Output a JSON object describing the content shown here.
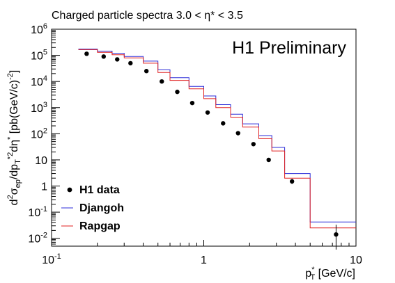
{
  "chart_data": {
    "type": "scatter",
    "title": "Charged particle spectra 3.0 < η* < 3.5",
    "annotation": "H1 Preliminary",
    "x_scale": "log",
    "y_scale": "log",
    "xlim": [
      0.1,
      10
    ],
    "ylim": [
      0.005,
      1000000
    ],
    "grid": false,
    "legend_position": "bottom-left",
    "x_ticks": [
      {
        "value": 0.1,
        "base": "10",
        "exp": "-1"
      },
      {
        "value": 1,
        "base": "1",
        "exp": ""
      },
      {
        "value": 10,
        "base": "10",
        "exp": ""
      }
    ],
    "y_ticks": [
      {
        "value": 0.01,
        "base": "10",
        "exp": "-2"
      },
      {
        "value": 0.1,
        "base": "10",
        "exp": "-1"
      },
      {
        "value": 1,
        "base": "1",
        "exp": ""
      },
      {
        "value": 10,
        "base": "10",
        "exp": ""
      },
      {
        "value": 100,
        "base": "10",
        "exp": "2"
      },
      {
        "value": 1000,
        "base": "10",
        "exp": "3"
      },
      {
        "value": 10000,
        "base": "10",
        "exp": "4"
      },
      {
        "value": 100000,
        "base": "10",
        "exp": "5"
      },
      {
        "value": 1000000,
        "base": "10",
        "exp": "6"
      }
    ],
    "xlabel": {
      "base": "p",
      "sup": "*",
      "sub": "T",
      "rest": " [GeV/c]"
    },
    "ylabel": {
      "parts": [
        {
          "t": "d",
          "s": ""
        },
        {
          "t": "2",
          "s": "sup"
        },
        {
          "t": "σ",
          "s": ""
        },
        {
          "t": "ep",
          "s": "sub"
        },
        {
          "t": "/dp",
          "s": ""
        },
        {
          "t": "T",
          "s": "sub"
        },
        {
          "t": "*2",
          "s": "sup"
        },
        {
          "t": "dη",
          "s": ""
        },
        {
          "t": "*",
          "s": "sup"
        },
        {
          "t": " [pb(GeV/c)",
          "s": ""
        },
        {
          "t": "-2",
          "s": "sup"
        },
        {
          "t": "]",
          "s": ""
        }
      ]
    },
    "series": [
      {
        "name": "H1 data",
        "kind": "points",
        "color": "#000000",
        "points": [
          {
            "x": 0.17,
            "y": 115000
          },
          {
            "x": 0.22,
            "y": 90000
          },
          {
            "x": 0.27,
            "y": 70000
          },
          {
            "x": 0.33,
            "y": 50000
          },
          {
            "x": 0.42,
            "y": 25000
          },
          {
            "x": 0.53,
            "y": 10000
          },
          {
            "x": 0.67,
            "y": 4000
          },
          {
            "x": 0.84,
            "y": 1500
          },
          {
            "x": 1.06,
            "y": 650
          },
          {
            "x": 1.34,
            "y": 250
          },
          {
            "x": 1.68,
            "y": 105
          },
          {
            "x": 2.12,
            "y": 40
          },
          {
            "x": 2.67,
            "y": 10
          },
          {
            "x": 3.8,
            "y": 1.5,
            "err": [
              1.2,
              1.9
            ]
          },
          {
            "x": 7.4,
            "y": 0.014,
            "err": [
              0.0037,
              0.033
            ]
          }
        ]
      },
      {
        "name": "Djangoh",
        "kind": "histogram",
        "color": "#2b2bd8",
        "edges": [
          0.15,
          0.2,
          0.25,
          0.3,
          0.4,
          0.5,
          0.6,
          0.8,
          1.0,
          1.2,
          1.5,
          1.8,
          2.3,
          2.8,
          3.4,
          5.0,
          10.0
        ],
        "values": [
          175000,
          145000,
          120000,
          90000,
          60000,
          28000,
          14000,
          6500,
          2800,
          1300,
          560,
          240,
          85,
          30,
          3.0,
          0.042
        ]
      },
      {
        "name": "Rapgap",
        "kind": "histogram",
        "color": "#e02020",
        "edges": [
          0.15,
          0.2,
          0.25,
          0.3,
          0.4,
          0.5,
          0.6,
          0.8,
          1.0,
          1.2,
          1.5,
          1.8,
          2.3,
          2.8,
          3.4,
          5.0,
          10.0
        ],
        "values": [
          165000,
          130000,
          105000,
          80000,
          50000,
          22000,
          11000,
          5200,
          2200,
          1000,
          430,
          180,
          65,
          22,
          2.0,
          0.025
        ]
      }
    ]
  }
}
